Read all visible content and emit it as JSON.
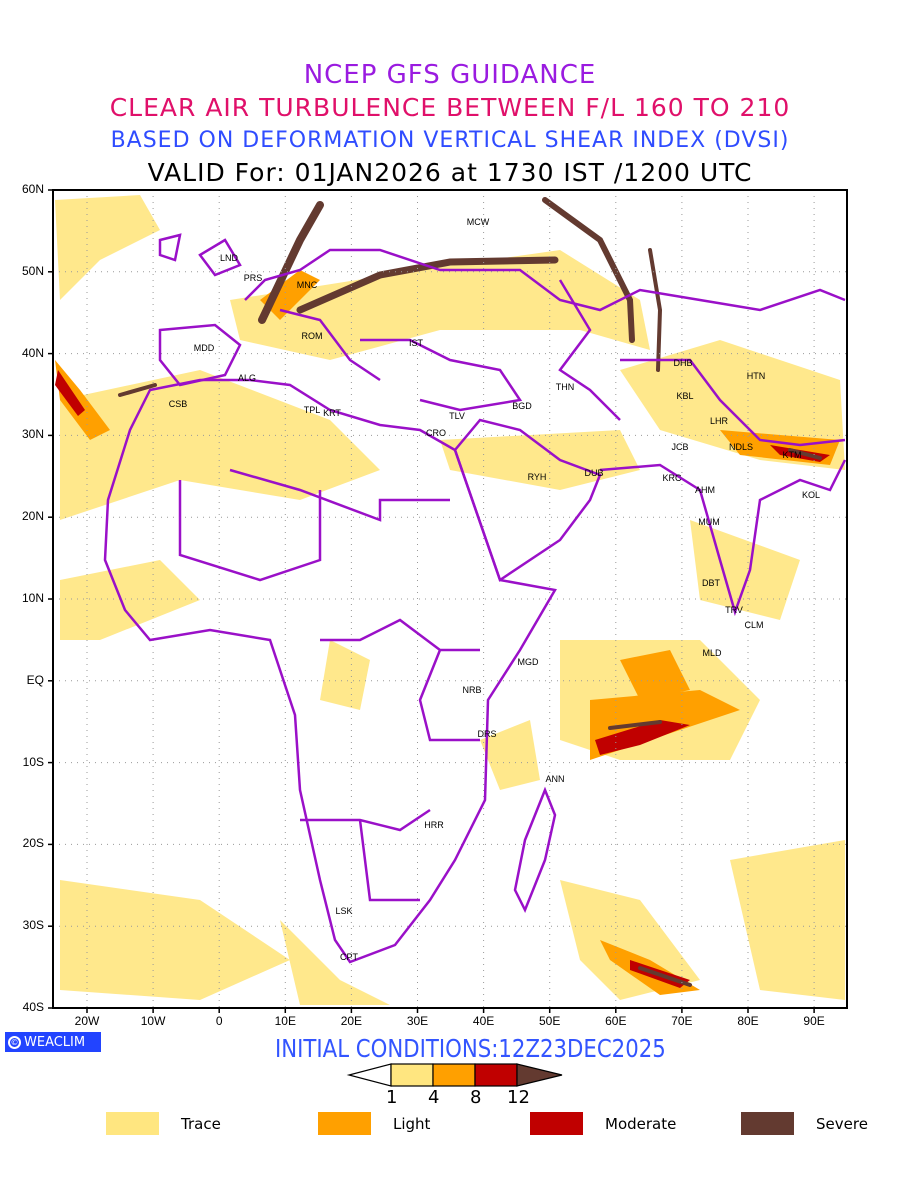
{
  "title": {
    "line1": "NCEP GFS GUIDANCE",
    "line2": "CLEAR AIR TURBULENCE BETWEEN F/L 160 TO 210",
    "line3": "BASED ON DEFORMATION VERTICAL SHEAR INDEX (DVSI)",
    "line4": "VALID For: 01JAN2026 at 1730 IST /1200 UTC"
  },
  "axes": {
    "lat_labels": [
      "60N",
      "50N",
      "40N",
      "30N",
      "20N",
      "10N",
      "EQ",
      "10S",
      "20S",
      "30S",
      "40S"
    ],
    "lon_labels": [
      "20W",
      "10W",
      "0",
      "10E",
      "20E",
      "30E",
      "40E",
      "50E",
      "60E",
      "70E",
      "80E",
      "90E"
    ]
  },
  "cities": [
    "MCW",
    "LND",
    "PRS",
    "MNC",
    "ROM",
    "MDD",
    "IST",
    "ALG",
    "CSB",
    "TPL",
    "KRT",
    "TLV",
    "CRO",
    "BGD",
    "THN",
    "DHB",
    "HTN",
    "KBL",
    "LHR",
    "JCB",
    "NDLS",
    "KTM",
    "RYH",
    "DUB",
    "KRC",
    "AHM",
    "KOL",
    "MUM",
    "DBT",
    "TRV",
    "CLM",
    "MLD",
    "MGD",
    "NRB",
    "DRS",
    "ANN",
    "HRR",
    "LSK",
    "CPT"
  ],
  "logo": {
    "symbol": "©",
    "text": "WEACLIM"
  },
  "initial_conditions": "INITIAL CONDITIONS:12Z23DEC2025",
  "colorbar": {
    "ticks": [
      "1",
      "4",
      "8",
      "12"
    ],
    "colors": [
      "#ffe680",
      "#ffa000",
      "#c00000",
      "#633a30"
    ]
  },
  "legend": [
    {
      "label": "Trace",
      "color": "#ffe680"
    },
    {
      "label": "Light",
      "color": "#ffa000"
    },
    {
      "label": "Moderate",
      "color": "#c00000"
    },
    {
      "label": "Severe",
      "color": "#633a30"
    }
  ],
  "colors": {
    "boundary": "#9a10c8",
    "title1": "#9a1be0",
    "title2": "#e0106a",
    "title3": "#2f4cff"
  }
}
